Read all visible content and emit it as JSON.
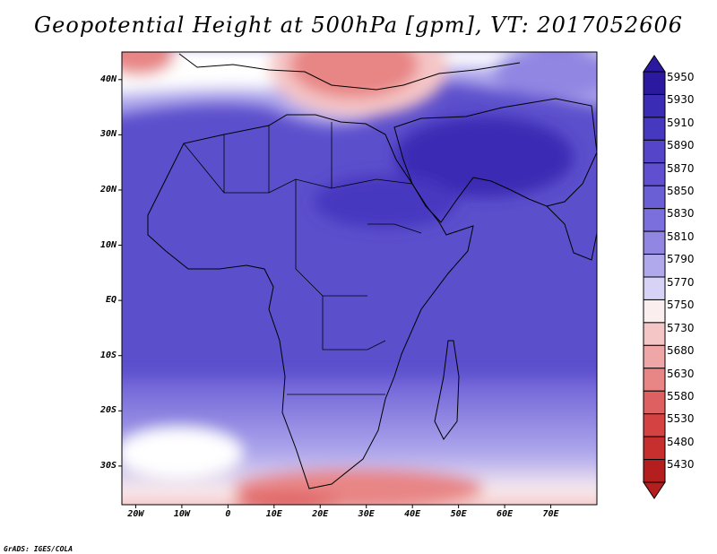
{
  "title": "Geopotential Height at 500hPa [gpm], VT: 2017052606",
  "credit": "GrADS: IGES/COLA",
  "map": {
    "lon_range": [
      -23,
      80
    ],
    "lat_range": [
      -37,
      45
    ],
    "lat_labels": [
      {
        "lat": 40,
        "label": "40N"
      },
      {
        "lat": 30,
        "label": "30N"
      },
      {
        "lat": 20,
        "label": "20N"
      },
      {
        "lat": 10,
        "label": "10N"
      },
      {
        "lat": 0,
        "label": "EQ"
      },
      {
        "lat": -10,
        "label": "10S"
      },
      {
        "lat": -20,
        "label": "20S"
      },
      {
        "lat": -30,
        "label": "30S"
      }
    ],
    "lon_labels": [
      {
        "lon": -20,
        "label": "20W"
      },
      {
        "lon": -10,
        "label": "10W"
      },
      {
        "lon": 0,
        "label": "0"
      },
      {
        "lon": 10,
        "label": "10E"
      },
      {
        "lon": 20,
        "label": "20E"
      },
      {
        "lon": 30,
        "label": "30E"
      },
      {
        "lon": 40,
        "label": "40E"
      },
      {
        "lon": 50,
        "label": "50E"
      },
      {
        "lon": 60,
        "label": "60E"
      },
      {
        "lon": 70,
        "label": "70E"
      }
    ]
  },
  "colorbar": {
    "levels": [
      "5950",
      "5930",
      "5910",
      "5890",
      "5870",
      "5850",
      "5830",
      "5810",
      "5790",
      "5770",
      "5750",
      "5730",
      "5680",
      "5630",
      "5580",
      "5530",
      "5480",
      "5430"
    ],
    "colors": [
      "#2b1aa0",
      "#3a2cb4",
      "#4738c0",
      "#5545c9",
      "#6050cf",
      "#6b5fd6",
      "#7a6fdc",
      "#9186e2",
      "#b0a9ec",
      "#d6d3f6",
      "#fbeeee",
      "#f5c6c6",
      "#efa6a6",
      "#e88585",
      "#df6060",
      "#d54242",
      "#c72e2e",
      "#b51e1e"
    ]
  }
}
